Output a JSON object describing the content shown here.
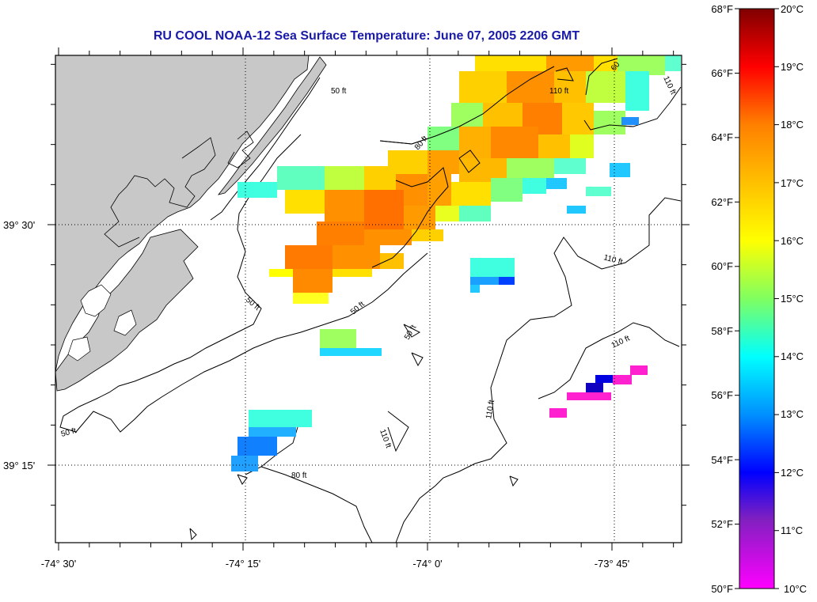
{
  "title": "RU COOL  NOAA-12  Sea Surface Temperature:  June 07, 2005 2206 GMT",
  "map": {
    "lon_labels": [
      "-74° 30'",
      "-74° 15'",
      "-74° 0'",
      "-73° 45'"
    ],
    "lat_labels": [
      "39° 30'",
      "39° 15'"
    ],
    "contour_labels": [
      "50 ft",
      "50 ft",
      "50 ft",
      "50 ft",
      "50 ft",
      "80 ft",
      "80 ft",
      "110 ft",
      "110 ft",
      "110 ft",
      "110 ft",
      "110 ft",
      "110 ft",
      "60"
    ],
    "land_color": "#c8c8c8"
  },
  "colorbar": {
    "f_labels": [
      "68°F",
      "66°F",
      "64°F",
      "62°F",
      "60°F",
      "58°F",
      "56°F",
      "54°F",
      "52°F",
      "50°F"
    ],
    "c_labels": [
      "20°C",
      "19°C",
      "18°C",
      "17°C",
      "16°C",
      "15°C",
      "14°C",
      "13°C",
      "12°C",
      "11°C",
      "10°C"
    ],
    "colors_hot_to_cold": [
      "#800000",
      "#ff0000",
      "#ff8000",
      "#ffff00",
      "#80ff80",
      "#00ffff",
      "#0080ff",
      "#0000ff",
      "#ff00ff"
    ]
  }
}
